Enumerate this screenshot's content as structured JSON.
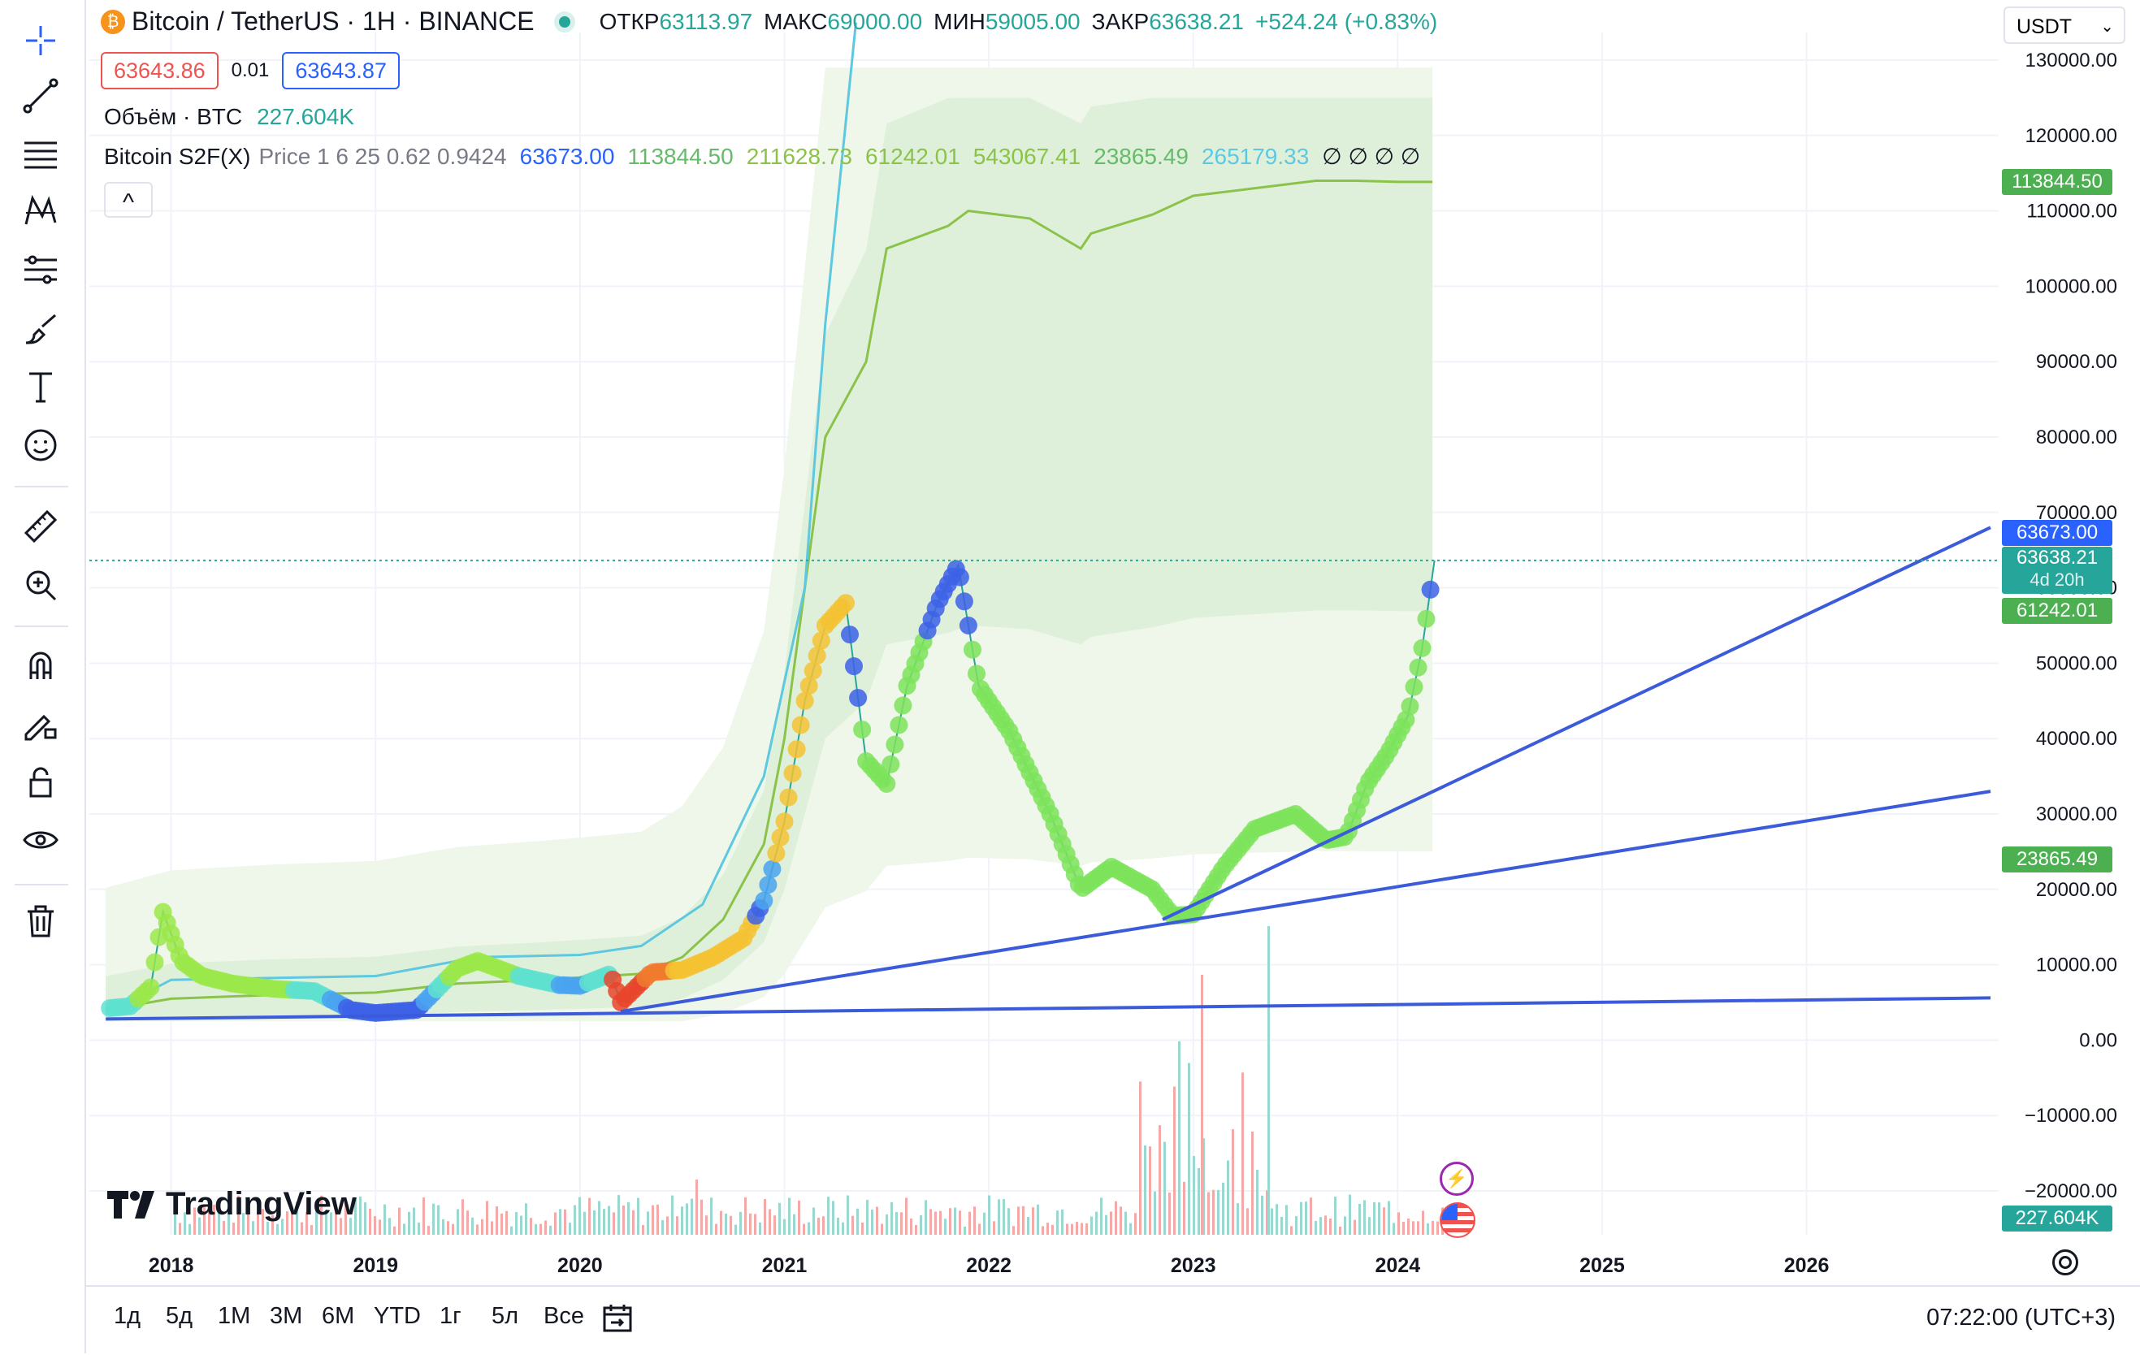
{
  "toolbar": {
    "icons": [
      "crosshair-icon",
      "trend-line-icon",
      "fib-icon",
      "pattern-icon",
      "forecast-icon",
      "brush-icon",
      "text-icon",
      "emoji-icon",
      "ruler-icon",
      "zoom-in-icon",
      "magnet-icon",
      "lock-draw-icon",
      "lock-icon",
      "eye-icon",
      "trash-icon"
    ]
  },
  "legend": {
    "symbol": "Bitcoin / TetherUS · 1H · BINANCE",
    "open_label": "ОТКР",
    "open_value": "63113.97",
    "high_label": "МАКС",
    "high_value": "69000.00",
    "low_label": "МИН",
    "low_value": "59005.00",
    "close_label": "ЗАКР",
    "close_value": "63638.21",
    "change": "+524.24 (+0.83%)",
    "bid": "63643.86",
    "spread": "0.01",
    "ask": "63643.87",
    "volume_label": "Объём · BTC",
    "volume_value": "227.604K",
    "indicator_name": "Bitcoin S2F(X)",
    "indicator_params": "Price 1 6 25 0.62 0.9424",
    "ind_v1": "63673.00",
    "ind_v2": "113844.50",
    "ind_v3": "211628.73",
    "ind_v4": "61242.01",
    "ind_v5": "543067.41",
    "ind_v6": "23865.49",
    "ind_v7": "265179.33",
    "ind_na": "∅ ∅ ∅ ∅",
    "collapse": "^"
  },
  "currency": "USDT",
  "tags": {
    "s2f_upper": "113844.50",
    "indicator": "63673.00",
    "price": "63638.21",
    "countdown": "4d 20h",
    "s2f_mid": "61242.01",
    "s2f_lower": "23865.49",
    "volume": "227.604K"
  },
  "colors": {
    "up": "#26a69a",
    "down": "#ef5350",
    "accent": "#2962ff",
    "band_fill": "#e3f2e3",
    "s2f_line": "#8bc34a",
    "cyan_line": "#5ec8e0",
    "trend": "#3b5bdb"
  },
  "brand": "TradingView",
  "bottom": {
    "ranges": [
      "1д",
      "5д",
      "1М",
      "3М",
      "6М",
      "YTD",
      "1г",
      "5л",
      "Все"
    ],
    "clock": "07:22:00 (UTC+3)"
  },
  "chart_data": {
    "type": "line",
    "y_ticks": [
      "130000.00",
      "120000.00",
      "110000.00",
      "100000.00",
      "90000.00",
      "80000.00",
      "70000.00",
      "60000.00",
      "50000.00",
      "40000.00",
      "30000.00",
      "20000.00",
      "10000.00",
      "0.00",
      "−10000.00",
      "−20000.00"
    ],
    "x_ticks": [
      "2018",
      "2019",
      "2020",
      "2021",
      "2022",
      "2023",
      "2024",
      "2025",
      "2026"
    ],
    "ylim": [
      -20000,
      130000
    ],
    "xlim": [
      2017.6,
      2026.9
    ],
    "series": [
      {
        "x": [
          2017.68,
          2017.8,
          2017.9,
          2017.96,
          2018.05,
          2018.15,
          2018.3,
          2018.5,
          2018.7,
          2018.88,
          2019.0,
          2019.2,
          2019.4,
          2019.5,
          2019.7,
          2019.9,
          2020.0,
          2020.15,
          2020.2,
          2020.35,
          2020.5,
          2020.65,
          2020.8,
          2020.9,
          2021.0,
          2021.1,
          2021.2,
          2021.3,
          2021.4,
          2021.5,
          2021.6,
          2021.75,
          2021.85,
          2021.95,
          2022.1,
          2022.3,
          2022.45,
          2022.6,
          2022.8,
          2022.9,
          2023.0,
          2023.15,
          2023.3,
          2023.5,
          2023.65,
          2023.75,
          2023.85,
          2023.95,
          2024.05,
          2024.12,
          2024.18
        ],
        "y": [
          4200,
          4500,
          7000,
          17000,
          10500,
          8500,
          7500,
          6800,
          6500,
          4000,
          3600,
          4000,
          9500,
          10500,
          8500,
          7300,
          7200,
          8800,
          5000,
          9000,
          9300,
          11000,
          13500,
          18500,
          29000,
          45000,
          55000,
          58000,
          37000,
          34000,
          47000,
          58000,
          63000,
          47000,
          41000,
          30000,
          20000,
          23000,
          20000,
          16500,
          16700,
          23000,
          28000,
          30000,
          26500,
          27000,
          34000,
          38000,
          43000,
          52000,
          63638.21
        ]
      },
      {
        "x": [
          2017.68,
          2018.0,
          2018.5,
          2019.0,
          2019.4,
          2019.8,
          2020.0,
          2020.3,
          2020.5,
          2020.7,
          2020.9,
          2021.0,
          2021.2,
          2021.4,
          2021.5,
          2021.8,
          2021.9,
          2022.2,
          2022.45,
          2022.5,
          2022.8,
          2023.0,
          2023.3,
          2023.6,
          2023.8,
          2024.0,
          2024.17
        ],
        "y": [
          4000,
          5500,
          6000,
          6300,
          7500,
          8000,
          8300,
          8800,
          11000,
          16000,
          26000,
          40000,
          80000,
          90000,
          105000,
          108000,
          110000,
          109000,
          105000,
          107000,
          109500,
          112000,
          113000,
          114000,
          114000,
          113844.5,
          113844.5
        ]
      },
      {
        "x": [
          2017.68,
          2018.0,
          2019.0,
          2019.5,
          2020.0,
          2020.3,
          2020.6,
          2020.9,
          2021.1,
          2021.2,
          2021.35
        ],
        "y": [
          3500,
          8000,
          8500,
          11000,
          11300,
          12500,
          18000,
          35000,
          60000,
          95000,
          135000
        ]
      }
    ],
    "trend_lines": [
      {
        "from": [
          2017.68,
          2800
        ],
        "to": [
          2026.9,
          5600
        ]
      },
      {
        "from": [
          2020.2,
          3800
        ],
        "to": [
          2026.9,
          33000
        ]
      },
      {
        "from": [
          2022.85,
          16000
        ],
        "to": [
          2026.9,
          68000
        ]
      }
    ]
  }
}
